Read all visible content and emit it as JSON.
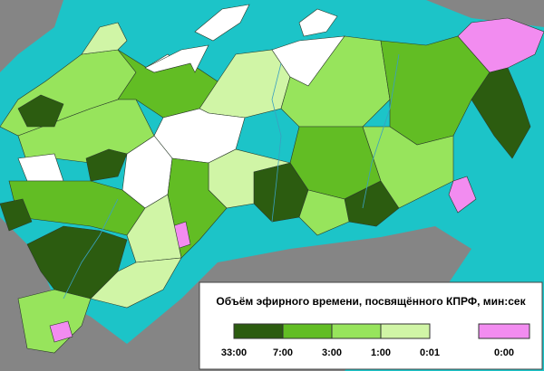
{
  "legend": {
    "title": "Объём эфирного времени, посвящённого КПРФ, мин:сек",
    "colors": [
      "#2c5c10",
      "#62bd24",
      "#97e45c",
      "#d0f5a6"
    ],
    "boundaries": [
      "33:00",
      "7:00",
      "3:00",
      "1:00",
      "0:01"
    ],
    "zero_color": "#f28cf0",
    "zero_label": "0:00"
  }
}
